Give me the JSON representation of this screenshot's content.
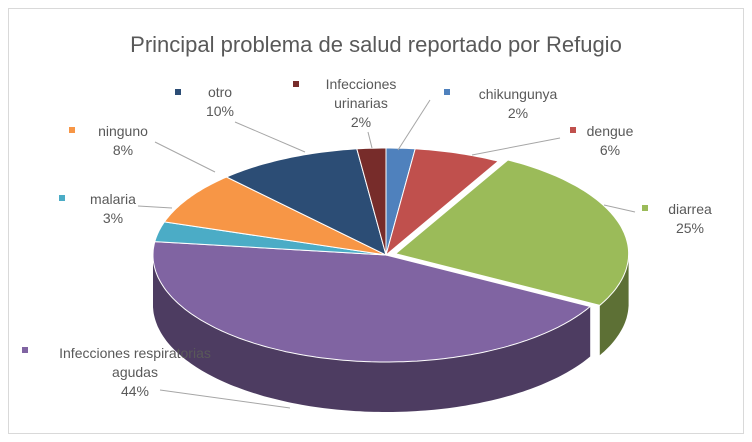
{
  "chart_data": {
    "type": "pie",
    "title": "Principal problema de salud reportado por Refugio",
    "categories": [
      "chikungunya",
      "dengue",
      "diarrea",
      "Infecciones respiratorias agudas",
      "malaria",
      "ninguno",
      "otro",
      "Infecciones urinarias"
    ],
    "values": [
      2,
      6,
      25,
      44,
      3,
      8,
      10,
      2
    ],
    "value_labels": [
      "2%",
      "6%",
      "25%",
      "44%",
      "3%",
      "8%",
      "10%",
      "2%"
    ],
    "colors": [
      "#4f81bd",
      "#c0504d",
      "#9bbb59",
      "#8064a2",
      "#4bacc6",
      "#f79646",
      "#2c4d75",
      "#772c2a"
    ],
    "three_d": true
  }
}
